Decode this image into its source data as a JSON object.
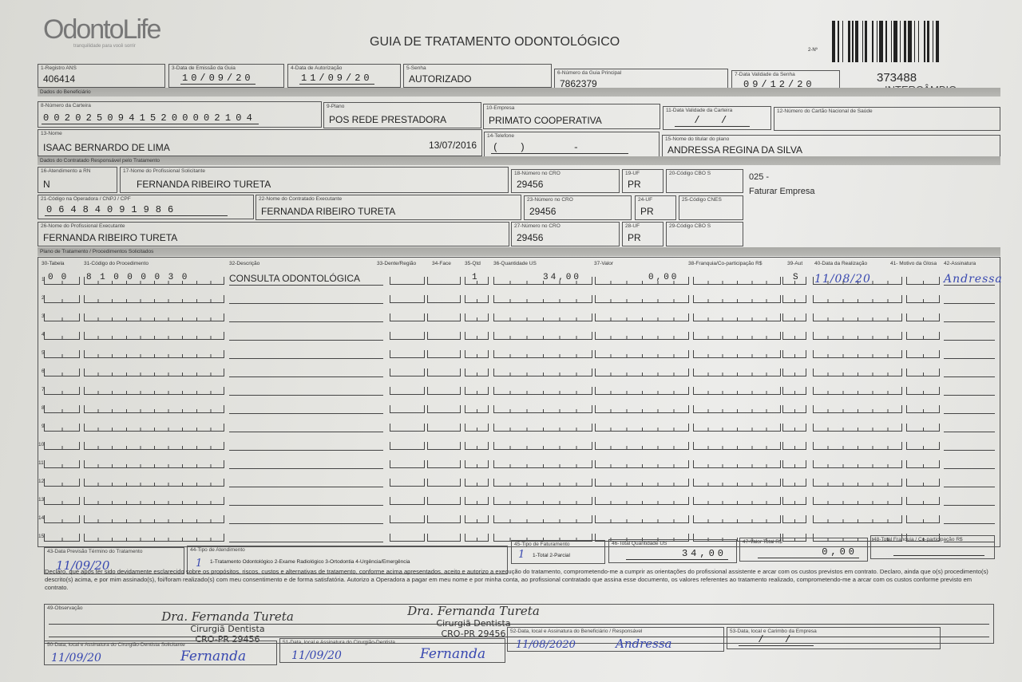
{
  "header": {
    "logo_text": "OdontoLife",
    "logo_tagline": "tranquilidade para você sorrir",
    "title": "GUIA DE TRATAMENTO ODONTOLÓGICO",
    "guia_number_label": "2-Nº",
    "ref_number": "373488",
    "ref_type": "INTERCÂMBIO"
  },
  "guia": {
    "registro_ans": {
      "label": "1-Registro ANS",
      "value": "406414"
    },
    "data_emissao": {
      "label": "3-Data de Emissão da Guia",
      "value": "10/09/20"
    },
    "data_autorizacao": {
      "label": "4-Data de Autorização",
      "value": "11/09/20"
    },
    "senha": {
      "label": "5-Senha",
      "value": "AUTORIZADO"
    },
    "guia_principal": {
      "label": "6-Número da Guia Principal",
      "value": "7862379"
    },
    "validade_senha": {
      "label": "7-Data Validade da Senha",
      "value": "09/12/20"
    }
  },
  "beneficiario": {
    "section_title": "Dados do Beneficiário",
    "carteira": {
      "label": "8-Número da Carteira",
      "value": "00202509415200002104"
    },
    "plano": {
      "label": "9-Plano",
      "value": "POS REDE PRESTADORA"
    },
    "empresa": {
      "label": "10-Empresa",
      "value": "PRIMATO COOPERATIVA"
    },
    "validade_carteira": {
      "label": "11-Data Validade da Carteira",
      "value": "  /  /  "
    },
    "cartao_nacional": {
      "label": "12-Número do Cartão Nacional de Saúde",
      "value": ""
    },
    "nome": {
      "label": "13-Nome",
      "value": "ISAAC BERNARDO DE LIMA",
      "birth_date": "13/07/2016"
    },
    "telefone": {
      "label": "14-Telefone",
      "value": "(  )     -     "
    },
    "titular": {
      "label": "15-Nome do titular do plano",
      "value": "ANDRESSA REGINA DA SILVA"
    }
  },
  "contratado": {
    "section_title": "Dados do Contratado Responsável pelo Tratamento",
    "atendimento_rn": {
      "label": "16-Atendimento a RN",
      "value": "N"
    },
    "prof_solicitante": {
      "label": "17-Nome do Profissional Solicitante",
      "value": "FERNANDA RIBEIRO TURETA"
    },
    "cro_18": {
      "label": "18-Número no CRO",
      "value": "29456"
    },
    "uf_19": {
      "label": "19-UF",
      "value": "PR"
    },
    "cbo_20": {
      "label": "20-Código CBO S",
      "value": ""
    },
    "note_code": "025 -",
    "note_text": "Faturar Empresa",
    "codigo_operadora": {
      "label": "21-Código na Operadora / CNPJ / CPF",
      "value": "06484091986"
    },
    "contratado_executante": {
      "label": "22-Nome do Contratado Executante",
      "value": "FERNANDA RIBEIRO TURETA"
    },
    "cro_23": {
      "label": "23-Número no CRO",
      "value": "29456"
    },
    "uf_24": {
      "label": "24-UF",
      "value": "PR"
    },
    "cnes_25": {
      "label": "25-Código CNES",
      "value": ""
    },
    "prof_executante": {
      "label": "26-Nome do Profissional Executante",
      "value": "FERNANDA RIBEIRO TURETA"
    },
    "cro_27": {
      "label": "27-Número no CRO",
      "value": "29456"
    },
    "uf_28": {
      "label": "28-UF",
      "value": "PR"
    },
    "cbo_29": {
      "label": "29-Código CBO S",
      "value": ""
    }
  },
  "plano": {
    "section_title": "Plano de Tratamento / Procedimentos Solicitados",
    "headers": {
      "tabela": "30-Tabela",
      "codigo": "31-Código do Procedimento",
      "descricao": "32-Descrição",
      "dente": "33-Dente/Região",
      "face": "34-Face",
      "qtd": "35-Qtd",
      "qtd_us": "36-Quantidade US",
      "valor": "37-Valor",
      "franquia": "38-Franquia/Co-participação R$",
      "aut": "39-Aut",
      "data": "40-Data da Realização",
      "glosa": "41- Motivo da Glosa",
      "assinatura": "42-Assinatura"
    },
    "rows": [
      {
        "n": "1",
        "tabela": "00",
        "codigo": "81000030",
        "descricao": "CONSULTA ODONTOLÓGICA",
        "qtd": "1",
        "qtd_us": "34,00",
        "valor": "0,00",
        "aut": "S",
        "data": "11/08/20",
        "assinatura": "Andressa"
      },
      {
        "n": "2"
      },
      {
        "n": "3"
      },
      {
        "n": "4"
      },
      {
        "n": "5"
      },
      {
        "n": "6"
      },
      {
        "n": "7"
      },
      {
        "n": "8"
      },
      {
        "n": "9"
      },
      {
        "n": "10"
      },
      {
        "n": "11"
      },
      {
        "n": "12"
      },
      {
        "n": "13"
      },
      {
        "n": "14"
      },
      {
        "n": "15"
      }
    ]
  },
  "totais": {
    "previsao_termino": {
      "label": "43-Data Previsão Término do Tratamento",
      "value": "11/09/20"
    },
    "tipo_atendimento": {
      "label": "44-Tipo de Atendimento",
      "value": "1",
      "options": "1-Tratamento Odontológico  2-Exame Radiológico  3-Ortodontia  4-Urgência/Emergência"
    },
    "tipo_faturamento": {
      "label": "45-Tipo de Faturamento",
      "value": "1",
      "options": "1-Total  2-Parcial"
    },
    "total_us": {
      "label": "46-Total Quantidade US",
      "value": "34,00"
    },
    "valor_total": {
      "label": "47-Valor Total R$",
      "value": "0,00"
    },
    "total_franquia": {
      "label": "48-Total Franquia / Co-participação R$",
      "value": ""
    }
  },
  "declaracao": "Declaro, que após ter sido devidamente esclarecido sobre os propósitos, riscos, custos e alternativas de tratamento, conforme acima apresentados, aceito e autorizo a execução do tratamento, comprometendo-me a cumprir as orientações do profissional assistente e arcar com os custos previstos em contrato. Declaro, ainda que o(s) procedimento(s) descrito(s) acima, e por mim assinado(s), foi/foram realizado(s) com meu consentimento e de forma satisfatória. Autorizo a Operadora a pagar em meu nome e por minha conta, ao profissional contratado que assina esse documento, os valores referentes ao tratamento realizado, comprometendo-me a arcar com os custos conforme previsto em contrato.",
  "observacao": {
    "label": "49-Observação",
    "value": ""
  },
  "stamp": {
    "name": "Dra. Fernanda Tureta",
    "title": "Cirurgiã Dentista",
    "cro": "CRO-PR 29456"
  },
  "assinaturas": {
    "cd_solicitante": {
      "label": "50-Data, local e Assinatura do Cirurgião-Dentista Solicitante",
      "date": "11/09/20",
      "signature": "Fernanda"
    },
    "cd": {
      "label": "51-Data, local e Assinatura do Cirurgião-Dentista",
      "date": "11/09/20",
      "signature": "Fernanda"
    },
    "beneficiario": {
      "label": "52-Data, local e Assinatura do Beneficiário / Responsável",
      "date": "11/08/2020",
      "signature": "Andressa"
    },
    "empresa": {
      "label": "53-Data, local e Carimbo da Empresa",
      "date": "  /  /  "
    }
  }
}
